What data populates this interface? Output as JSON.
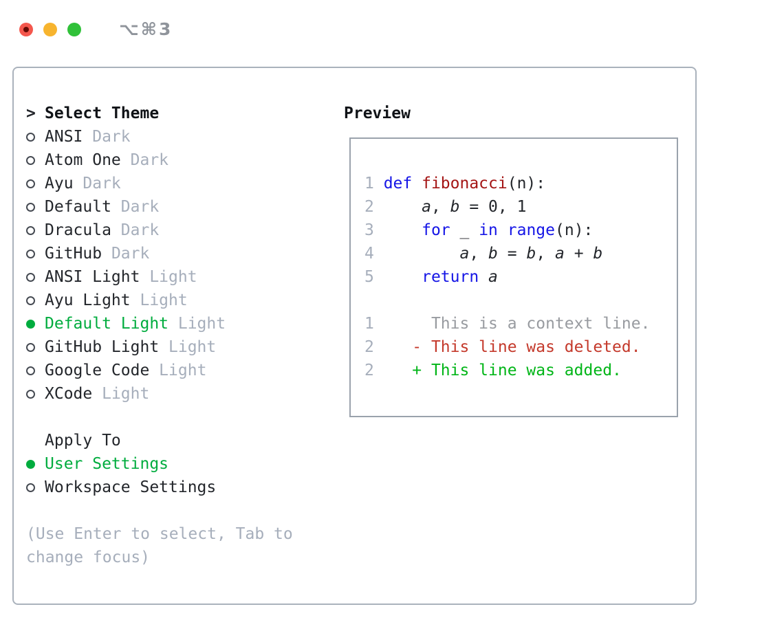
{
  "titlebar": {
    "shortcut": "⌥⌘3",
    "lights": [
      {
        "icon": "close-traffic-light-icon",
        "color": "#f4574d",
        "dot_color": "#650a04"
      },
      {
        "icon": "minimize-traffic-light-icon",
        "color": "#f7b42e"
      },
      {
        "icon": "zoom-traffic-light-icon",
        "color": "#30c139"
      }
    ]
  },
  "theme_picker": {
    "cursor": ">",
    "title": "Select Theme",
    "items": [
      {
        "name": "ANSI",
        "variant": "Dark",
        "selected": false
      },
      {
        "name": "Atom One",
        "variant": "Dark",
        "selected": false
      },
      {
        "name": "Ayu",
        "variant": "Dark",
        "selected": false
      },
      {
        "name": "Default",
        "variant": "Dark",
        "selected": false
      },
      {
        "name": "Dracula",
        "variant": "Dark",
        "selected": false
      },
      {
        "name": "GitHub",
        "variant": "Dark",
        "selected": false
      },
      {
        "name": "ANSI Light",
        "variant": "Light",
        "selected": false
      },
      {
        "name": "Ayu Light",
        "variant": "Light",
        "selected": false
      },
      {
        "name": "Default Light",
        "variant": "Light",
        "selected": true
      },
      {
        "name": "GitHub Light",
        "variant": "Light",
        "selected": false
      },
      {
        "name": "Google Code",
        "variant": "Light",
        "selected": false
      },
      {
        "name": "XCode",
        "variant": "Light",
        "selected": false
      }
    ],
    "apply_to": {
      "title": "Apply To",
      "options": [
        {
          "name": "User Settings",
          "selected": true
        },
        {
          "name": "Workspace Settings",
          "selected": false
        }
      ]
    },
    "hint_line1": "(Use Enter to select, Tab to",
    "hint_line2": "change focus)"
  },
  "preview": {
    "title": "Preview",
    "code_lines": [
      {
        "num": "1",
        "segments": [
          {
            "text": "def ",
            "style": "kw"
          },
          {
            "text": "fibonacci",
            "style": "fn"
          },
          {
            "text": "(n):",
            "style": "pl"
          }
        ]
      },
      {
        "num": "2",
        "segments": [
          {
            "text": "    ",
            "style": "pl"
          },
          {
            "text": "a",
            "style": "vr"
          },
          {
            "text": ", ",
            "style": "pl"
          },
          {
            "text": "b",
            "style": "vr"
          },
          {
            "text": " = 0, 1",
            "style": "pl"
          }
        ]
      },
      {
        "num": "3",
        "segments": [
          {
            "text": "    ",
            "style": "pl"
          },
          {
            "text": "for",
            "style": "kw"
          },
          {
            "text": " _ ",
            "style": "pl"
          },
          {
            "text": "in",
            "style": "kw"
          },
          {
            "text": " ",
            "style": "pl"
          },
          {
            "text": "range",
            "style": "kw"
          },
          {
            "text": "(n):",
            "style": "pl"
          }
        ]
      },
      {
        "num": "4",
        "segments": [
          {
            "text": "        ",
            "style": "pl"
          },
          {
            "text": "a",
            "style": "vr"
          },
          {
            "text": ", ",
            "style": "pl"
          },
          {
            "text": "b",
            "style": "vr"
          },
          {
            "text": " = ",
            "style": "pl"
          },
          {
            "text": "b",
            "style": "vr"
          },
          {
            "text": ", ",
            "style": "pl"
          },
          {
            "text": "a",
            "style": "vr"
          },
          {
            "text": " + ",
            "style": "pl"
          },
          {
            "text": "b",
            "style": "vr"
          }
        ]
      },
      {
        "num": "5",
        "segments": [
          {
            "text": "    ",
            "style": "pl"
          },
          {
            "text": "return",
            "style": "kw"
          },
          {
            "text": " ",
            "style": "pl"
          },
          {
            "text": "a",
            "style": "vr"
          }
        ]
      }
    ],
    "diff_lines": [
      {
        "num": "1",
        "segments": [
          {
            "text": "     This is a context line.",
            "style": "ctx"
          }
        ]
      },
      {
        "num": "2",
        "segments": [
          {
            "text": "   - This line was deleted.",
            "style": "del"
          }
        ]
      },
      {
        "num": "2",
        "segments": [
          {
            "text": "   + This line was added.",
            "style": "add"
          }
        ]
      }
    ]
  },
  "colors": {
    "selected_green": "#00ac3e",
    "muted_gray": "#a6aebb",
    "keyword_blue": "#1515e6",
    "function_red": "#a41515",
    "diff_deleted_red": "#c4392b",
    "diff_added_green": "#00b517",
    "context_gray": "#989ba0",
    "panel_border": "#aab2bc",
    "preview_border": "#9aa2ac",
    "traffic_red": "#f4574d",
    "traffic_yellow": "#f7b42e",
    "traffic_green": "#30c139"
  }
}
